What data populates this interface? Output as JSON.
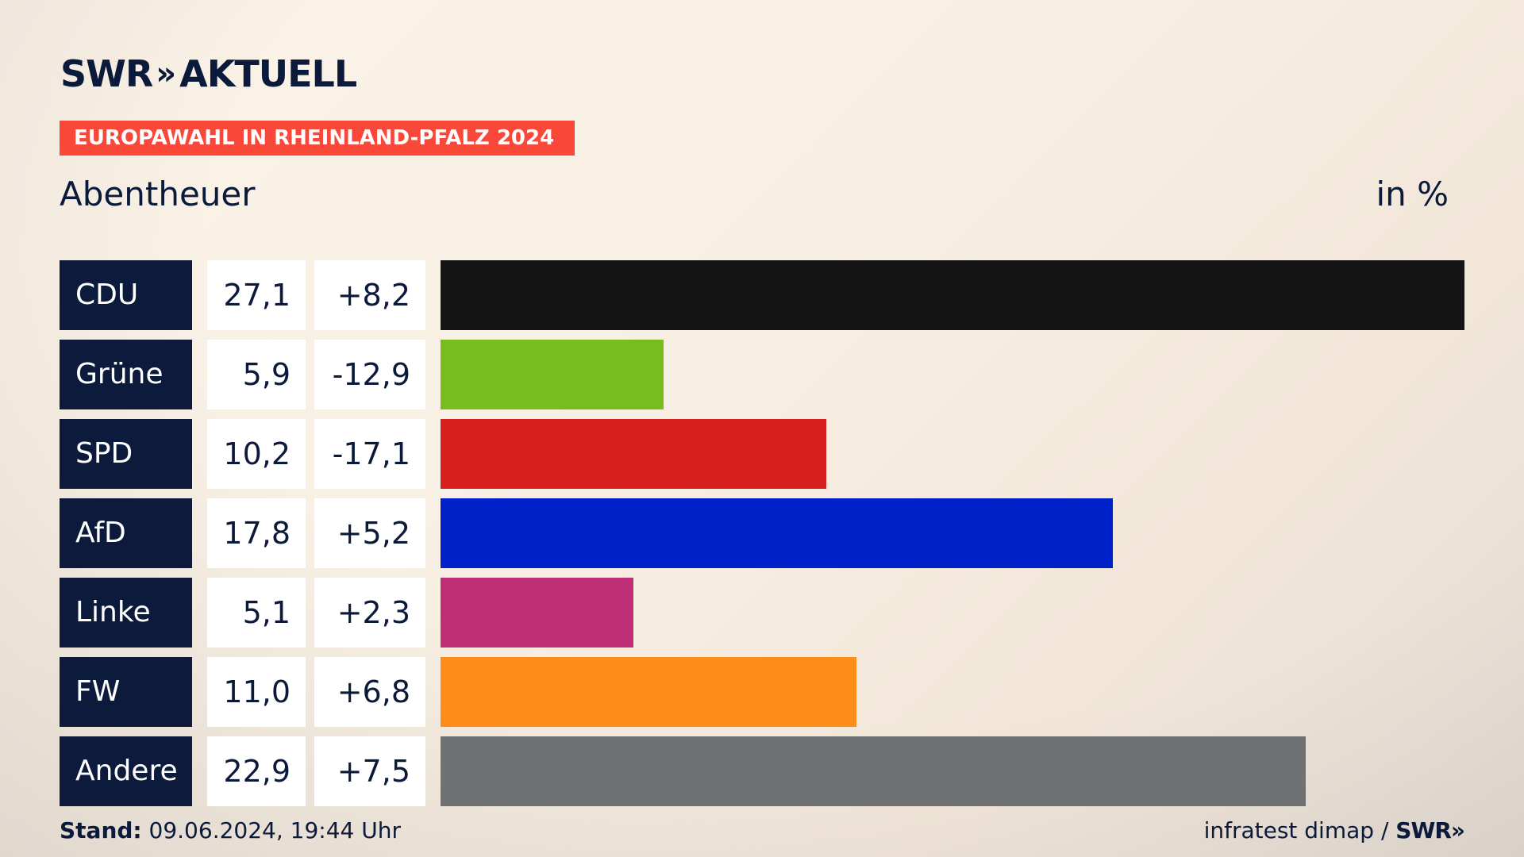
{
  "header": {
    "logo_swr": "SWR",
    "logo_chevrons": "»",
    "logo_aktuell": "AKTUELL",
    "banner": "EUROPAWAHL IN RHEINLAND-PFALZ 2024",
    "subtitle": "Abentheuer",
    "unit": "in %"
  },
  "chart_data": {
    "type": "bar",
    "orientation": "horizontal",
    "title": "EUROPAWAHL IN RHEINLAND-PFALZ 2024",
    "subtitle": "Abentheuer",
    "unit": "in %",
    "categories": [
      "CDU",
      "Grüne",
      "SPD",
      "AfD",
      "Linke",
      "FW",
      "Andere"
    ],
    "values": [
      27.1,
      5.9,
      10.2,
      17.8,
      5.1,
      11.0,
      22.9
    ],
    "value_labels": [
      "27,1",
      "5,9",
      "10,2",
      "17,8",
      "5,1",
      "11,0",
      "22,9"
    ],
    "diff_labels": [
      "+8,2",
      "-12,9",
      "-17,1",
      "+5,2",
      "+2,3",
      "+6,8",
      "+7,5"
    ],
    "colors": [
      "#141414",
      "#78bd1e",
      "#d71f1d",
      "#0021c8",
      "#bd3075",
      "#fb8d18",
      "#707173"
    ],
    "xlim": [
      0,
      27.1
    ]
  },
  "footer": {
    "stand_label": "Stand:",
    "stand_value": "09.06.2024, 19:44 Uhr",
    "source": "infratest dimap /",
    "source_logo": "SWR»"
  }
}
